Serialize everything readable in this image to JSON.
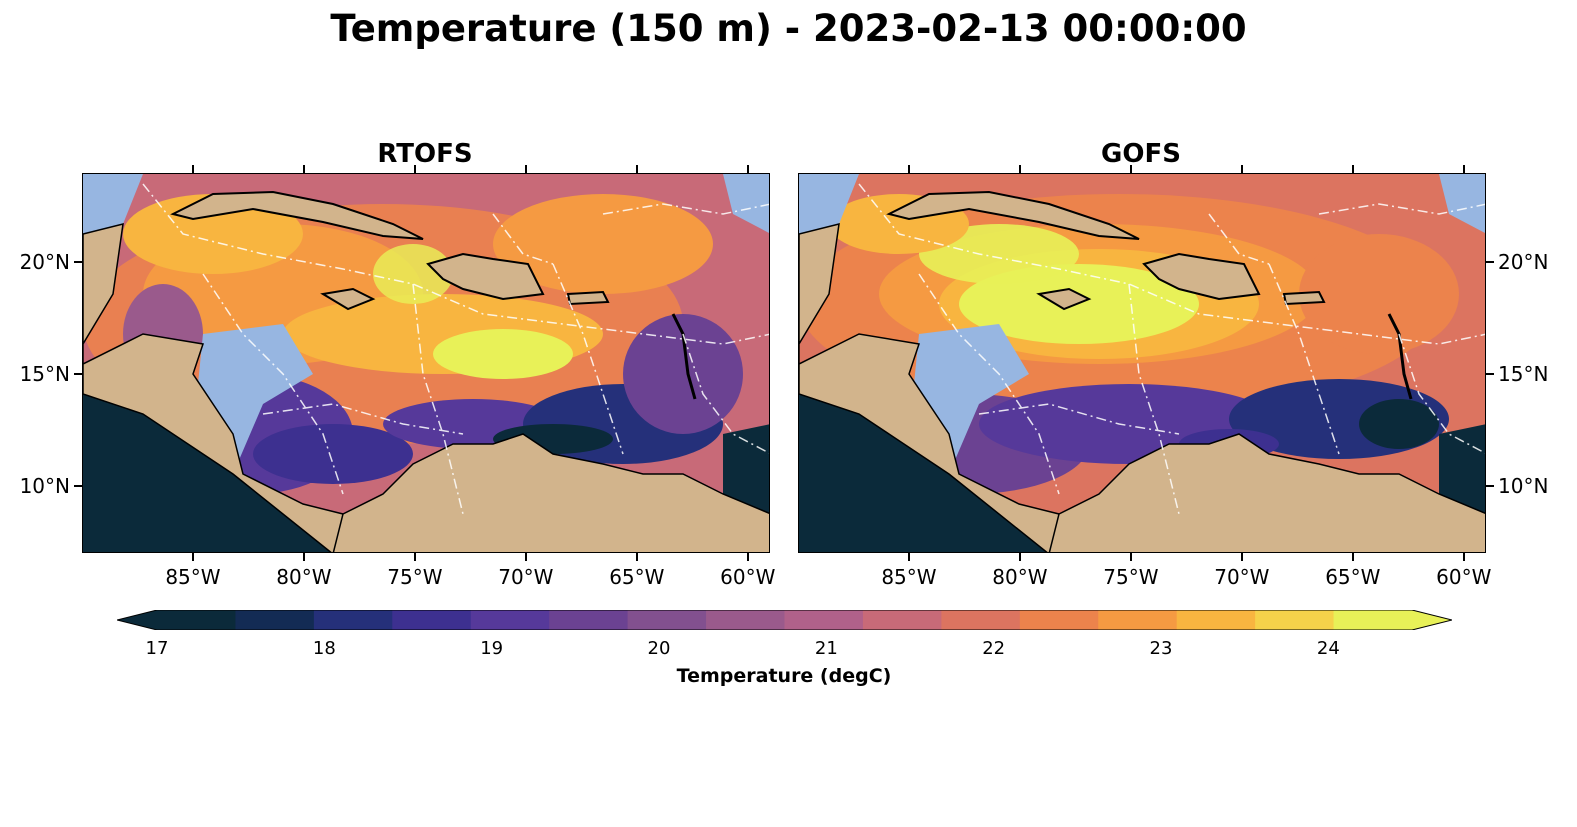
{
  "figure": {
    "title": "Temperature (150 m) - 2023-02-13 00:00:00"
  },
  "panels": [
    {
      "title": "RTOFS"
    },
    {
      "title": "GOFS"
    }
  ],
  "axes": {
    "lat_labels": [
      "20°N",
      "15°N",
      "10°N"
    ],
    "lon_labels": [
      "85°W",
      "80°W",
      "75°W",
      "70°W",
      "65°W",
      "60°W"
    ],
    "lat_values": [
      20,
      15,
      10
    ],
    "lon_values": [
      -85,
      -80,
      -75,
      -70,
      -65,
      -60
    ],
    "lat_range": [
      7,
      24
    ],
    "lon_range": [
      -90,
      -59
    ]
  },
  "colorbar": {
    "label": "Temperature (degC)",
    "tick_labels": [
      "17",
      "18",
      "19",
      "20",
      "21",
      "22",
      "23",
      "24"
    ],
    "range": [
      17,
      24.5
    ],
    "colors": [
      "#0b2a3a",
      "#132b54",
      "#25307a",
      "#3d3090",
      "#56399a",
      "#6b4292",
      "#82508f",
      "#9a5a8c",
      "#b0618a",
      "#c86a78",
      "#dc7460",
      "#ec834c",
      "#f59a42",
      "#f8b540",
      "#f5d24a",
      "#e8f158"
    ]
  },
  "map_colors": {
    "land": "#d2b48c",
    "shelf_water": "#97b6e1",
    "coastline": "#000000",
    "eez": "#ffffff"
  }
}
